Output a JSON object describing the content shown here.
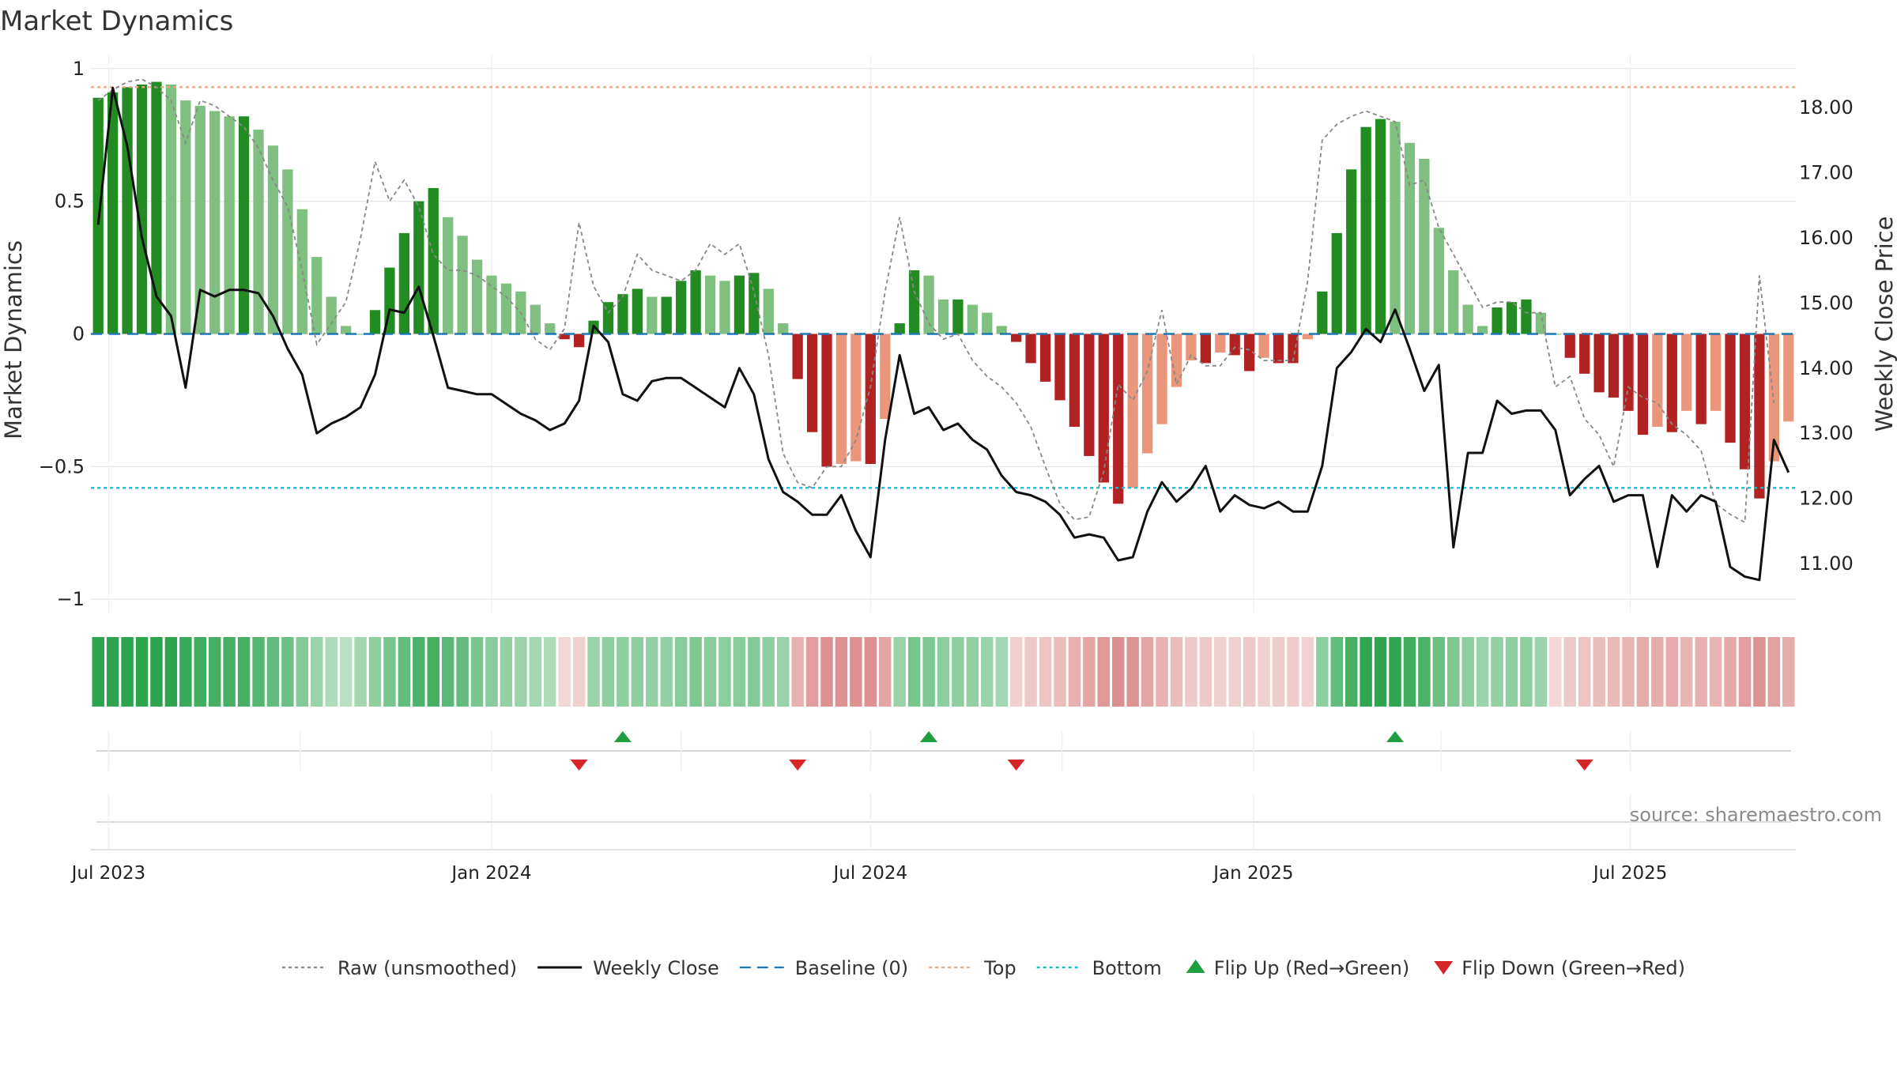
{
  "chart_data": {
    "type": "bar",
    "title": "Market Dynamics",
    "ylabel_left": "Market Dynamics",
    "ylabel_right": "Weekly Close Price",
    "source": "source: sharemaestro.com",
    "ylim_left": [
      -1.05,
      1.05
    ],
    "ylim_right": [
      10.25,
      18.8
    ],
    "yticks_left": [
      1,
      0.5,
      0,
      -0.5,
      -1
    ],
    "yticks_left_labels": [
      "1",
      "0.5",
      "0",
      "−0.5",
      "−1"
    ],
    "yticks_right": [
      18,
      17,
      16,
      15,
      14,
      13,
      12,
      11
    ],
    "yticks_right_labels": [
      "18.00",
      "17.00",
      "16.00",
      "15.00",
      "14.00",
      "13.00",
      "12.00",
      "11.00"
    ],
    "x_start": "2023-06-26",
    "x_tick_dates": [
      "2023-07-01",
      "2024-01-01",
      "2024-07-01",
      "2025-01-01",
      "2025-07-01"
    ],
    "x_tick_labels": [
      "Jul 2023",
      "Jan 2024",
      "Jul 2024",
      "Jan 2025",
      "Jul 2025"
    ],
    "top_line": 0.93,
    "bottom_line": -0.58,
    "baseline": 0,
    "grid": true,
    "legend_position": "bottom",
    "colors": {
      "strong_up": "#228b22",
      "weak_up": "#7fbf7f",
      "strong_down": "#b22222",
      "weak_down": "#e9967a",
      "raw": "#888888",
      "close": "#111111",
      "baseline": "#1f77b4",
      "top": "#e8a87c",
      "bottom": "#17becf",
      "flip_up": "#1e9e3e",
      "flip_down": "#d62728"
    },
    "series": [
      {
        "name": "Market Dynamics (smoothed)",
        "values": [
          0.89,
          0.91,
          0.93,
          0.94,
          0.95,
          0.94,
          0.88,
          0.86,
          0.84,
          0.82,
          0.82,
          0.77,
          0.71,
          0.62,
          0.47,
          0.29,
          0.14,
          0.03,
          0.0,
          0.09,
          0.25,
          0.38,
          0.5,
          0.55,
          0.44,
          0.37,
          0.28,
          0.22,
          0.19,
          0.16,
          0.11,
          0.04,
          -0.02,
          -0.05,
          0.05,
          0.12,
          0.15,
          0.17,
          0.14,
          0.14,
          0.2,
          0.24,
          0.22,
          0.2,
          0.22,
          0.23,
          0.17,
          0.04,
          -0.17,
          -0.37,
          -0.5,
          -0.49,
          -0.48,
          -0.49,
          -0.32,
          0.04,
          0.24,
          0.22,
          0.13,
          0.13,
          0.11,
          0.08,
          0.03,
          -0.03,
          -0.11,
          -0.18,
          -0.25,
          -0.35,
          -0.46,
          -0.56,
          -0.64,
          -0.58,
          -0.45,
          -0.34,
          -0.2,
          -0.1,
          -0.11,
          -0.07,
          -0.08,
          -0.14,
          -0.09,
          -0.11,
          -0.11,
          -0.02,
          0.16,
          0.38,
          0.62,
          0.78,
          0.81,
          0.8,
          0.72,
          0.66,
          0.4,
          0.24,
          0.11,
          0.03,
          0.1,
          0.12,
          0.13,
          0.08,
          0.0,
          -0.09,
          -0.15,
          -0.22,
          -0.24,
          -0.29,
          -0.38,
          -0.35,
          -0.37,
          -0.29,
          -0.34,
          -0.29,
          -0.41,
          -0.51,
          -0.62,
          -0.48,
          -0.33
        ]
      },
      {
        "name": "Raw (unsmoothed)",
        "values": [
          0.88,
          0.92,
          0.95,
          0.96,
          0.93,
          0.88,
          0.72,
          0.88,
          0.86,
          0.82,
          0.78,
          0.7,
          0.58,
          0.48,
          0.24,
          -0.04,
          0.04,
          0.12,
          0.36,
          0.65,
          0.5,
          0.58,
          0.48,
          0.3,
          0.24,
          0.24,
          0.22,
          0.18,
          0.14,
          0.08,
          -0.02,
          -0.06,
          0.02,
          0.42,
          0.18,
          0.08,
          0.14,
          0.3,
          0.24,
          0.22,
          0.2,
          0.24,
          0.34,
          0.3,
          0.34,
          0.16,
          -0.08,
          -0.45,
          -0.56,
          -0.58,
          -0.5,
          -0.5,
          -0.4,
          -0.2,
          0.16,
          0.44,
          0.16,
          0.04,
          -0.02,
          0.0,
          -0.1,
          -0.16,
          -0.2,
          -0.26,
          -0.35,
          -0.5,
          -0.64,
          -0.7,
          -0.69,
          -0.52,
          -0.19,
          -0.25,
          -0.14,
          0.09,
          -0.19,
          -0.08,
          -0.12,
          -0.12,
          -0.05,
          -0.06,
          -0.1,
          -0.1,
          -0.1,
          0.2,
          0.73,
          0.79,
          0.82,
          0.84,
          0.82,
          0.8,
          0.56,
          0.58,
          0.4,
          0.3,
          0.2,
          0.1,
          0.12,
          0.12,
          0.08,
          0.08,
          -0.2,
          -0.16,
          -0.32,
          -0.38,
          -0.5,
          -0.2,
          -0.24,
          -0.26,
          -0.34,
          -0.38,
          -0.44,
          -0.64,
          -0.68,
          -0.71,
          0.22,
          -0.26
        ]
      },
      {
        "name": "Weekly Close",
        "values": [
          16.2,
          18.3,
          17.4,
          16.0,
          15.1,
          14.8,
          13.7,
          15.2,
          15.1,
          15.2,
          15.2,
          15.15,
          14.8,
          14.3,
          13.9,
          13.0,
          13.15,
          13.25,
          13.4,
          13.9,
          14.9,
          14.85,
          15.25,
          14.5,
          13.7,
          13.65,
          13.6,
          13.6,
          13.45,
          13.3,
          13.2,
          13.05,
          13.15,
          13.5,
          14.65,
          14.4,
          13.6,
          13.5,
          13.8,
          13.85,
          13.85,
          13.7,
          13.55,
          13.4,
          14.0,
          13.6,
          12.6,
          12.1,
          11.95,
          11.75,
          11.75,
          12.05,
          11.5,
          11.1,
          12.9,
          14.2,
          13.3,
          13.4,
          13.05,
          13.15,
          12.9,
          12.75,
          12.35,
          12.1,
          12.05,
          11.95,
          11.75,
          11.4,
          11.45,
          11.4,
          11.05,
          11.1,
          11.8,
          12.25,
          11.95,
          12.15,
          12.5,
          11.8,
          12.05,
          11.9,
          11.85,
          11.95,
          11.8,
          11.8,
          12.5,
          14.0,
          14.25,
          14.6,
          14.4,
          14.9,
          14.3,
          13.65,
          14.05,
          11.25,
          12.7,
          12.7,
          13.5,
          13.3,
          13.35,
          13.35,
          13.05,
          12.05,
          12.3,
          12.5,
          11.95,
          12.05,
          12.05,
          10.95,
          12.05,
          11.8,
          12.05,
          11.95,
          10.95,
          10.8,
          10.75,
          12.9,
          12.4
        ]
      }
    ],
    "regime_strip": [
      0.85,
      0.85,
      0.85,
      0.85,
      0.85,
      0.85,
      0.75,
      0.72,
      0.7,
      0.68,
      0.68,
      0.62,
      0.55,
      0.5,
      0.4,
      0.3,
      0.2,
      0.15,
      0.25,
      0.35,
      0.45,
      0.55,
      0.65,
      0.7,
      0.6,
      0.55,
      0.45,
      0.38,
      0.33,
      0.3,
      0.25,
      0.2,
      -0.15,
      -0.2,
      0.3,
      0.35,
      0.35,
      0.35,
      0.33,
      0.33,
      0.38,
      0.42,
      0.38,
      0.36,
      0.38,
      0.4,
      0.35,
      0.3,
      -0.45,
      -0.6,
      -0.7,
      -0.7,
      -0.7,
      -0.7,
      -0.55,
      0.3,
      0.45,
      0.42,
      0.35,
      0.35,
      0.33,
      0.3,
      0.25,
      -0.2,
      -0.25,
      -0.3,
      -0.35,
      -0.45,
      -0.55,
      -0.65,
      -0.72,
      -0.68,
      -0.55,
      -0.45,
      -0.35,
      -0.25,
      -0.25,
      -0.2,
      -0.2,
      -0.25,
      -0.2,
      -0.22,
      -0.22,
      -0.18,
      0.35,
      0.55,
      0.7,
      0.8,
      0.82,
      0.8,
      0.72,
      0.66,
      0.5,
      0.42,
      0.35,
      0.28,
      0.33,
      0.35,
      0.36,
      0.3,
      -0.15,
      -0.25,
      -0.3,
      -0.35,
      -0.38,
      -0.42,
      -0.5,
      -0.48,
      -0.5,
      -0.42,
      -0.45,
      -0.42,
      -0.52,
      -0.6,
      -0.68,
      -0.58,
      -0.48
    ],
    "flips_up": [
      "2024-03-04",
      "2024-07-29",
      "2025-03-10"
    ],
    "flips_down": [
      "2024-02-12",
      "2024-05-27",
      "2024-09-09",
      "2025-06-09"
    ],
    "legend": [
      {
        "label": "Raw (unsmoothed)",
        "style": "dotted",
        "color": "#888888"
      },
      {
        "label": "Weekly Close",
        "style": "solid",
        "color": "#111111"
      },
      {
        "label": "Baseline (0)",
        "style": "dashed",
        "color": "#1f77b4"
      },
      {
        "label": "Top",
        "style": "dotted",
        "color": "#e8a87c"
      },
      {
        "label": "Bottom",
        "style": "dotted",
        "color": "#17becf"
      },
      {
        "label": "Flip Up (Red→Green)",
        "style": "triangle-up",
        "color": "#1e9e3e"
      },
      {
        "label": "Flip Down (Green→Red)",
        "style": "triangle-down",
        "color": "#d62728"
      }
    ]
  }
}
